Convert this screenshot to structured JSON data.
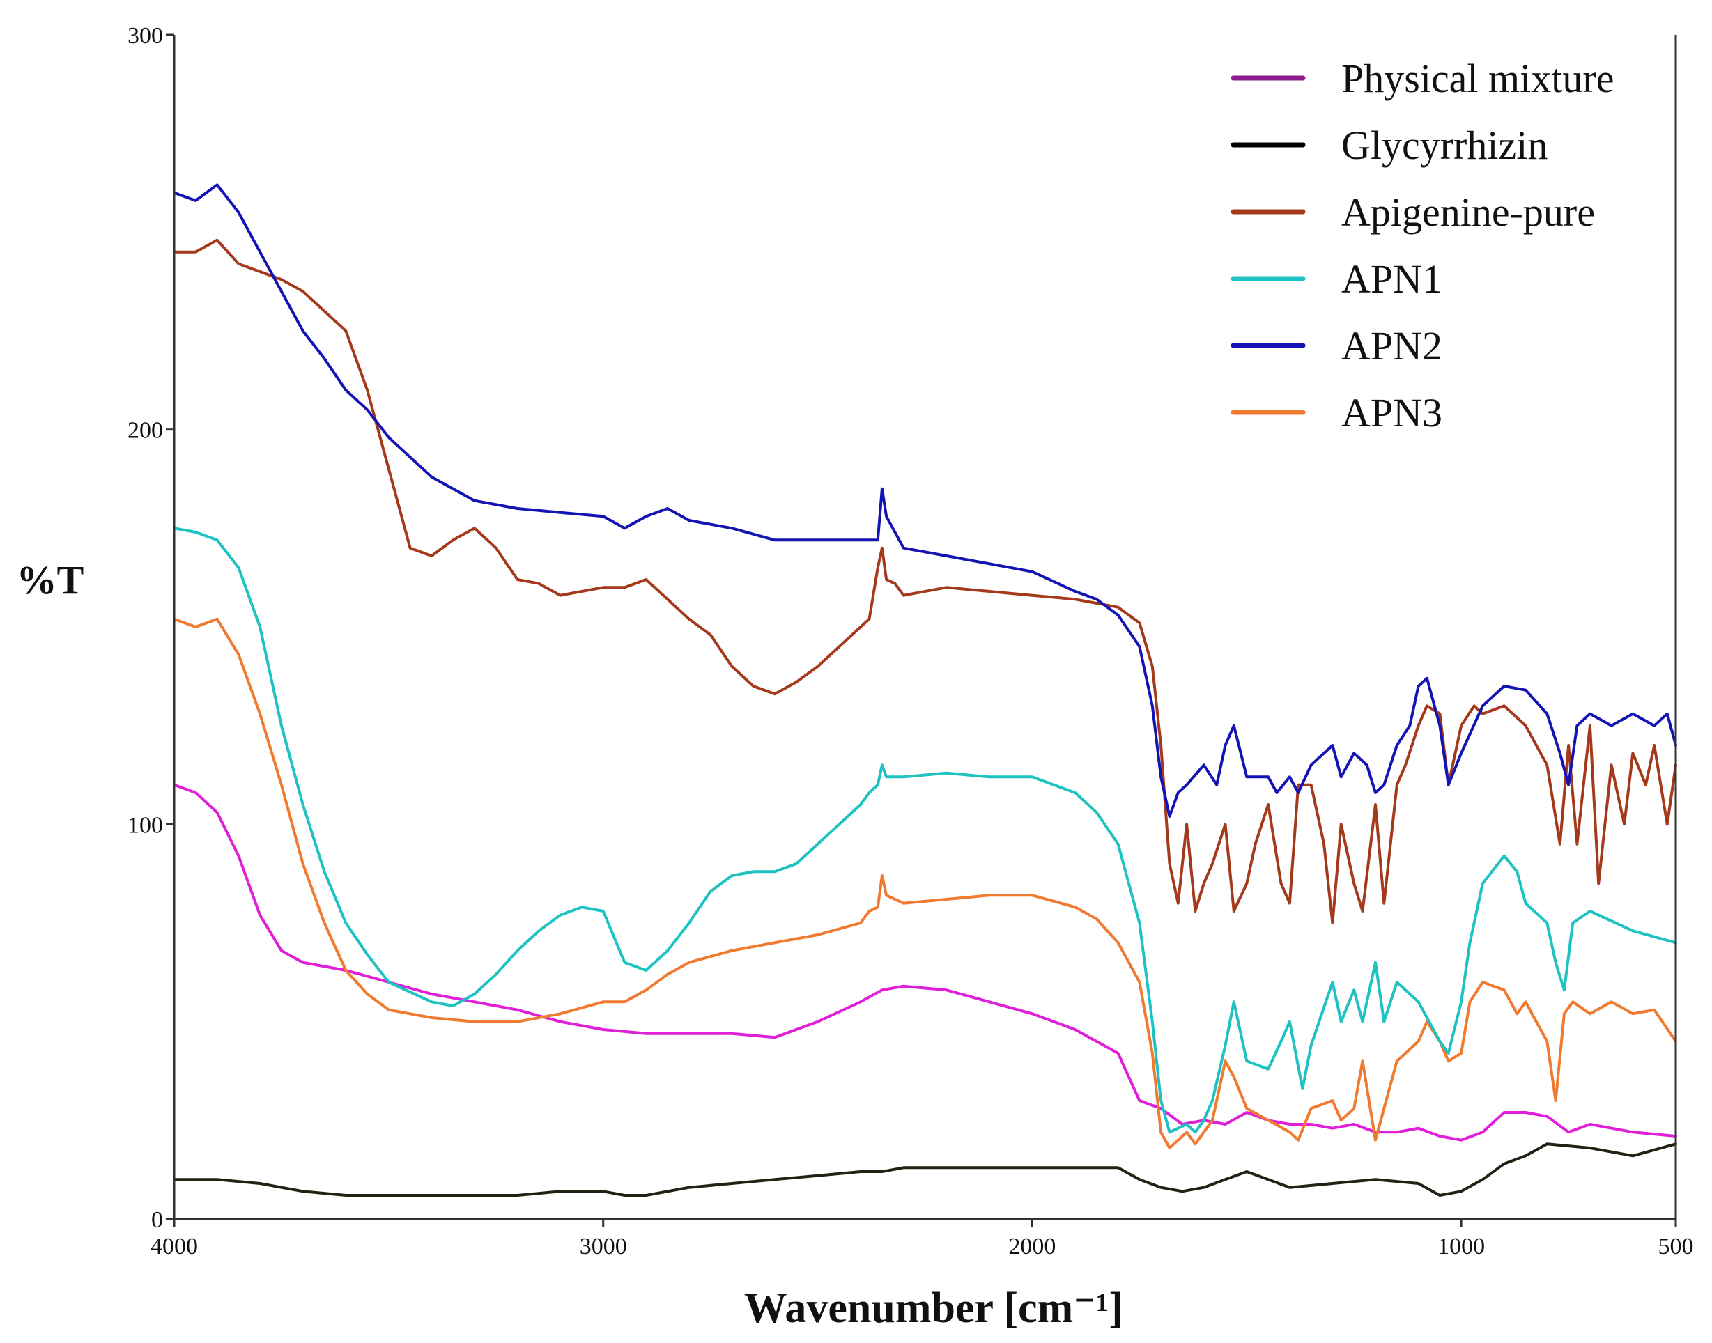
{
  "chart_data": {
    "type": "line",
    "title": "",
    "xlabel": "Wavenumber [cm⁻¹]",
    "ylabel": "%T",
    "xlim": [
      4000,
      500
    ],
    "ylim": [
      0,
      300
    ],
    "xticks": [
      4000,
      3000,
      2000,
      1000,
      500
    ],
    "yticks": [
      0,
      100,
      200,
      300
    ],
    "legend_position": "top-right",
    "colors": {
      "physical_mixture": "#e020d8",
      "glycyrrhizin": "#1e2414",
      "apigenine_pure": "#a4391b",
      "apn1": "#1fc2c2",
      "apn2": "#1414b4",
      "apn3": "#ef7a30",
      "axis": "#333333"
    },
    "legend_colors": {
      "physical_mixture": "#8e1a8e",
      "glycyrrhizin": "#000000",
      "apigenine_pure": "#a4391b",
      "apn1": "#1fc2c2",
      "apn2": "#1414b4",
      "apn3": "#ef7a30"
    },
    "series": [
      {
        "name": "Physical mixture",
        "key": "physical_mixture",
        "x": [
          4000,
          3950,
          3900,
          3850,
          3800,
          3750,
          3700,
          3600,
          3500,
          3400,
          3300,
          3200,
          3100,
          3000,
          2900,
          2800,
          2700,
          2600,
          2500,
          2400,
          2350,
          2300,
          2200,
          2100,
          2000,
          1900,
          1800,
          1750,
          1700,
          1650,
          1600,
          1550,
          1500,
          1450,
          1400,
          1350,
          1300,
          1250,
          1200,
          1150,
          1100,
          1050,
          1000,
          950,
          900,
          850,
          800,
          750,
          700,
          600,
          500
        ],
        "y": [
          110,
          108,
          103,
          92,
          77,
          68,
          65,
          63,
          60,
          57,
          55,
          53,
          50,
          48,
          47,
          47,
          47,
          46,
          50,
          55,
          58,
          59,
          58,
          55,
          52,
          48,
          42,
          30,
          28,
          24,
          25,
          24,
          27,
          25,
          24,
          24,
          23,
          24,
          22,
          22,
          23,
          21,
          20,
          22,
          27,
          27,
          26,
          22,
          24,
          22,
          21
        ]
      },
      {
        "name": "Glycyrrhizin",
        "key": "glycyrrhizin",
        "x": [
          4000,
          3900,
          3800,
          3700,
          3600,
          3500,
          3400,
          3300,
          3200,
          3100,
          3000,
          2950,
          2900,
          2800,
          2700,
          2600,
          2500,
          2400,
          2350,
          2300,
          2200,
          2100,
          2000,
          1900,
          1800,
          1750,
          1700,
          1650,
          1600,
          1550,
          1500,
          1450,
          1400,
          1300,
          1200,
          1100,
          1050,
          1000,
          950,
          900,
          850,
          800,
          700,
          600,
          500
        ],
        "y": [
          10,
          10,
          9,
          7,
          6,
          6,
          6,
          6,
          6,
          7,
          7,
          6,
          6,
          8,
          9,
          10,
          11,
          12,
          12,
          13,
          13,
          13,
          13,
          13,
          13,
          10,
          8,
          7,
          8,
          10,
          12,
          10,
          8,
          9,
          10,
          9,
          6,
          7,
          10,
          14,
          16,
          19,
          18,
          16,
          19
        ]
      },
      {
        "name": "Apigenine-pure",
        "key": "apigenine_pure",
        "x": [
          4000,
          3950,
          3900,
          3850,
          3800,
          3750,
          3700,
          3600,
          3550,
          3500,
          3450,
          3400,
          3350,
          3300,
          3250,
          3200,
          3150,
          3100,
          3050,
          3000,
          2950,
          2900,
          2850,
          2800,
          2750,
          2700,
          2650,
          2600,
          2550,
          2500,
          2450,
          2400,
          2380,
          2360,
          2350,
          2340,
          2320,
          2300,
          2200,
          2100,
          2000,
          1900,
          1800,
          1750,
          1720,
          1700,
          1680,
          1660,
          1640,
          1620,
          1600,
          1580,
          1550,
          1530,
          1500,
          1480,
          1450,
          1420,
          1400,
          1380,
          1350,
          1320,
          1300,
          1280,
          1250,
          1230,
          1200,
          1180,
          1150,
          1130,
          1100,
          1080,
          1050,
          1030,
          1000,
          970,
          950,
          900,
          850,
          800,
          770,
          750,
          730,
          700,
          680,
          650,
          620,
          600,
          570,
          550,
          520,
          500
        ],
        "y": [
          245,
          245,
          248,
          242,
          240,
          238,
          235,
          225,
          210,
          190,
          170,
          168,
          172,
          175,
          170,
          162,
          161,
          158,
          159,
          160,
          160,
          162,
          157,
          152,
          148,
          140,
          135,
          133,
          136,
          140,
          145,
          150,
          152,
          165,
          170,
          162,
          161,
          158,
          160,
          159,
          158,
          157,
          155,
          151,
          140,
          120,
          90,
          80,
          100,
          78,
          85,
          90,
          100,
          78,
          85,
          95,
          105,
          85,
          80,
          110,
          110,
          95,
          75,
          100,
          85,
          78,
          105,
          80,
          110,
          115,
          125,
          130,
          128,
          110,
          125,
          130,
          128,
          130,
          125,
          115,
          95,
          120,
          95,
          125,
          85,
          115,
          100,
          118,
          110,
          120,
          100,
          115
        ]
      },
      {
        "name": "APN1",
        "key": "apn1",
        "x": [
          4000,
          3950,
          3900,
          3850,
          3800,
          3750,
          3700,
          3650,
          3600,
          3550,
          3500,
          3400,
          3350,
          3300,
          3250,
          3200,
          3150,
          3100,
          3050,
          3000,
          2950,
          2900,
          2850,
          2800,
          2750,
          2700,
          2650,
          2600,
          2550,
          2500,
          2450,
          2400,
          2380,
          2360,
          2350,
          2340,
          2300,
          2200,
          2100,
          2000,
          1900,
          1850,
          1800,
          1750,
          1720,
          1700,
          1680,
          1660,
          1640,
          1620,
          1600,
          1580,
          1550,
          1530,
          1500,
          1450,
          1420,
          1400,
          1370,
          1350,
          1300,
          1280,
          1250,
          1230,
          1200,
          1180,
          1150,
          1100,
          1050,
          1030,
          1000,
          980,
          950,
          900,
          870,
          850,
          800,
          780,
          760,
          740,
          700,
          600,
          500
        ],
        "y": [
          175,
          174,
          172,
          165,
          150,
          125,
          105,
          88,
          75,
          67,
          60,
          55,
          54,
          57,
          62,
          68,
          73,
          77,
          79,
          78,
          65,
          63,
          68,
          75,
          83,
          87,
          88,
          88,
          90,
          95,
          100,
          105,
          108,
          110,
          115,
          112,
          112,
          113,
          112,
          112,
          108,
          103,
          95,
          75,
          50,
          30,
          22,
          23,
          24,
          22,
          25,
          30,
          44,
          55,
          40,
          38,
          45,
          50,
          33,
          44,
          60,
          50,
          58,
          50,
          65,
          50,
          60,
          55,
          45,
          42,
          55,
          70,
          85,
          92,
          88,
          80,
          75,
          65,
          58,
          75,
          78,
          73,
          70
        ]
      },
      {
        "name": "APN2",
        "key": "apn2",
        "x": [
          4000,
          3950,
          3900,
          3850,
          3800,
          3750,
          3700,
          3650,
          3600,
          3550,
          3500,
          3400,
          3300,
          3200,
          3100,
          3000,
          2950,
          2900,
          2850,
          2800,
          2700,
          2600,
          2500,
          2400,
          2360,
          2350,
          2340,
          2300,
          2200,
          2100,
          2000,
          1900,
          1850,
          1800,
          1750,
          1720,
          1700,
          1680,
          1660,
          1640,
          1600,
          1570,
          1550,
          1530,
          1500,
          1450,
          1430,
          1400,
          1380,
          1350,
          1300,
          1280,
          1250,
          1220,
          1200,
          1180,
          1150,
          1120,
          1100,
          1080,
          1050,
          1030,
          1000,
          950,
          900,
          850,
          800,
          770,
          750,
          730,
          700,
          650,
          600,
          550,
          520,
          500
        ],
        "y": [
          260,
          258,
          262,
          255,
          245,
          235,
          225,
          218,
          210,
          205,
          198,
          188,
          182,
          180,
          179,
          178,
          175,
          178,
          180,
          177,
          175,
          172,
          172,
          172,
          172,
          185,
          178,
          170,
          168,
          166,
          164,
          159,
          157,
          153,
          145,
          130,
          112,
          102,
          108,
          110,
          115,
          110,
          120,
          125,
          112,
          112,
          108,
          112,
          108,
          115,
          120,
          112,
          118,
          115,
          108,
          110,
          120,
          125,
          135,
          137,
          125,
          110,
          118,
          130,
          135,
          134,
          128,
          118,
          110,
          125,
          128,
          125,
          128,
          125,
          128,
          120
        ]
      },
      {
        "name": "APN3",
        "key": "apn3",
        "x": [
          4000,
          3950,
          3900,
          3850,
          3800,
          3750,
          3700,
          3650,
          3600,
          3550,
          3500,
          3400,
          3300,
          3200,
          3100,
          3000,
          2950,
          2900,
          2850,
          2800,
          2700,
          2600,
          2500,
          2400,
          2380,
          2360,
          2350,
          2340,
          2300,
          2200,
          2100,
          2000,
          1900,
          1850,
          1800,
          1750,
          1720,
          1700,
          1680,
          1660,
          1640,
          1620,
          1600,
          1580,
          1550,
          1530,
          1500,
          1450,
          1400,
          1380,
          1350,
          1300,
          1280,
          1250,
          1230,
          1200,
          1180,
          1150,
          1100,
          1080,
          1050,
          1030,
          1000,
          980,
          950,
          900,
          870,
          850,
          800,
          780,
          760,
          740,
          700,
          650,
          600,
          550,
          500
        ],
        "y": [
          152,
          150,
          152,
          143,
          128,
          110,
          90,
          75,
          63,
          57,
          53,
          51,
          50,
          50,
          52,
          55,
          55,
          58,
          62,
          65,
          68,
          70,
          72,
          75,
          78,
          79,
          87,
          82,
          80,
          81,
          82,
          82,
          79,
          76,
          70,
          60,
          42,
          22,
          18,
          20,
          22,
          19,
          22,
          25,
          40,
          36,
          28,
          25,
          22,
          20,
          28,
          30,
          25,
          28,
          40,
          20,
          28,
          40,
          45,
          50,
          45,
          40,
          42,
          55,
          60,
          58,
          52,
          55,
          45,
          30,
          52,
          55,
          52,
          55,
          52,
          53,
          45
        ]
      }
    ]
  }
}
